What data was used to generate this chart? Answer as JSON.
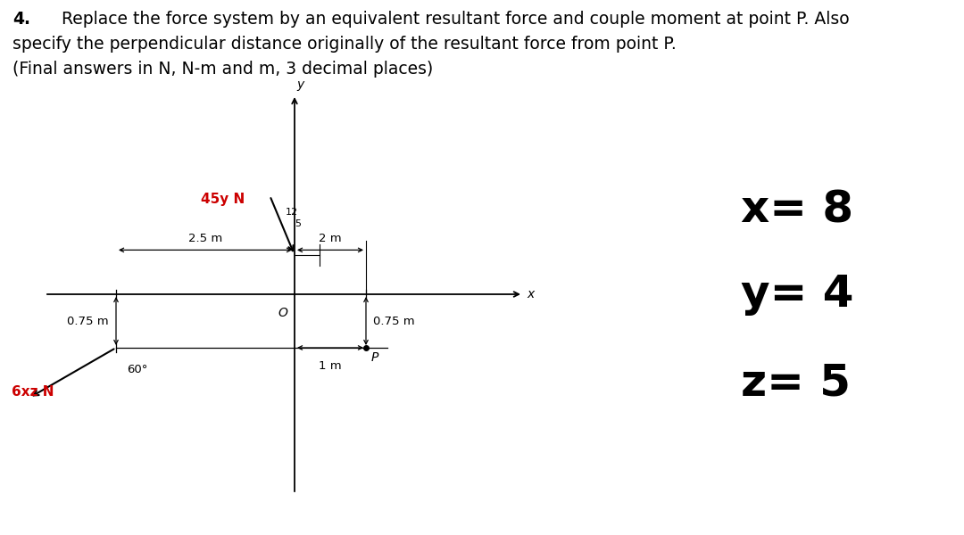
{
  "title_number": "4.",
  "title_line1": "Replace the force system by an equivalent resultant force and couple moment at point P. Also",
  "title_line2": "specify the perpendicular distance originally of the resultant force from point P.",
  "title_line3": "(Final answers in N, N-m and m, 3 decimal places)",
  "bg_color": "#ffffff",
  "text_color": "#000000",
  "force1_label": "45y N",
  "force1_color": "#cc0000",
  "force2_label": "6xz N",
  "force2_color": "#cc0000",
  "dim_25": "2.5 m",
  "dim_2": "2 m",
  "dim_075_left": "0.75 m",
  "dim_075_right": "0.75 m",
  "dim_1m": "1 m",
  "angle_label": "60°",
  "origin_label": "O",
  "point_p_label": "P",
  "x_label": "x",
  "y_label": "y",
  "ratio_12": "12",
  "ratio_5": "5",
  "var_x": "x= 8",
  "var_y": "y= 4",
  "var_z": "z= 5",
  "var_fontsize": 36,
  "title_fontsize": 13.5,
  "label_fontsize": 10,
  "dim_fontsize": 9.5
}
